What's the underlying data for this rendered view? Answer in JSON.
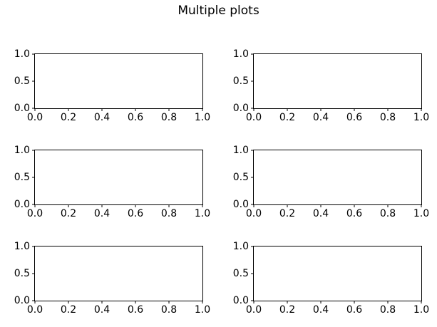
{
  "figure": {
    "suptitle": "Multiple plots",
    "background_color": "#ffffff",
    "spine_color": "#000000",
    "text_color": "#000000",
    "grid": {
      "rows": 3,
      "cols": 2
    }
  },
  "chart_data": [
    {
      "type": "line",
      "row": 1,
      "col": 1,
      "title": "",
      "series": [],
      "xlim": [
        0.0,
        1.0
      ],
      "ylim": [
        0.0,
        1.0
      ],
      "xtick_labels": [
        "0.0",
        "0.2",
        "0.4",
        "0.6",
        "0.8",
        "1.0"
      ],
      "ytick_labels": [
        "1.0",
        "0.5",
        "0.0"
      ],
      "grid": false
    },
    {
      "type": "line",
      "row": 1,
      "col": 2,
      "title": "",
      "series": [],
      "xlim": [
        0.0,
        1.0
      ],
      "ylim": [
        0.0,
        1.0
      ],
      "xtick_labels": [
        "0.0",
        "0.2",
        "0.4",
        "0.6",
        "0.8",
        "1.0"
      ],
      "ytick_labels": [
        "1.0",
        "0.5",
        "0.0"
      ],
      "grid": false
    },
    {
      "type": "line",
      "row": 2,
      "col": 1,
      "title": "",
      "series": [],
      "xlim": [
        0.0,
        1.0
      ],
      "ylim": [
        0.0,
        1.0
      ],
      "xtick_labels": [
        "0.0",
        "0.2",
        "0.4",
        "0.6",
        "0.8",
        "1.0"
      ],
      "ytick_labels": [
        "1.0",
        "0.5",
        "0.0"
      ],
      "grid": false
    },
    {
      "type": "line",
      "row": 2,
      "col": 2,
      "title": "",
      "series": [],
      "xlim": [
        0.0,
        1.0
      ],
      "ylim": [
        0.0,
        1.0
      ],
      "xtick_labels": [
        "0.0",
        "0.2",
        "0.4",
        "0.6",
        "0.8",
        "1.0"
      ],
      "ytick_labels": [
        "1.0",
        "0.5",
        "0.0"
      ],
      "grid": false
    },
    {
      "type": "line",
      "row": 3,
      "col": 1,
      "title": "",
      "series": [],
      "xlim": [
        0.0,
        1.0
      ],
      "ylim": [
        0.0,
        1.0
      ],
      "xtick_labels": [
        "0.0",
        "0.2",
        "0.4",
        "0.6",
        "0.8",
        "1.0"
      ],
      "ytick_labels": [
        "1.0",
        "0.5",
        "0.0"
      ],
      "grid": false
    },
    {
      "type": "line",
      "row": 3,
      "col": 2,
      "title": "",
      "series": [],
      "xlim": [
        0.0,
        1.0
      ],
      "ylim": [
        0.0,
        1.0
      ],
      "xtick_labels": [
        "0.0",
        "0.2",
        "0.4",
        "0.6",
        "0.8",
        "1.0"
      ],
      "ytick_labels": [
        "1.0",
        "0.5",
        "0.0"
      ],
      "grid": false
    }
  ]
}
